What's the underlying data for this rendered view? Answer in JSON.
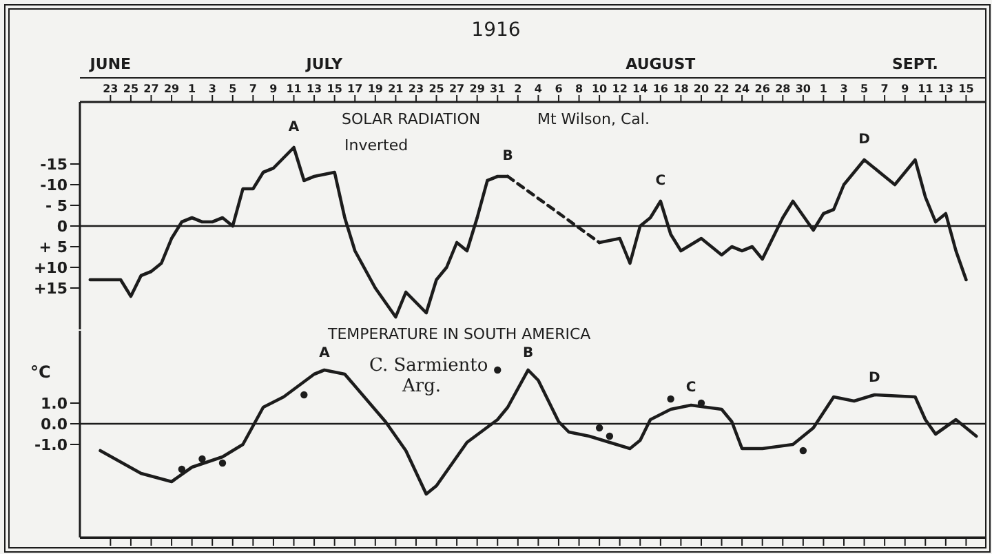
{
  "chart_data": [
    {
      "type": "line",
      "title": "1916",
      "xlim": [
        "1916-06-20",
        "1916-09-17"
      ],
      "ylim": [
        25,
        -30
      ],
      "xticks": [
        {
          "value": "1916-06-23",
          "label": "23"
        },
        {
          "value": "1916-06-25",
          "label": "25"
        },
        {
          "value": "1916-06-27",
          "label": "27"
        },
        {
          "value": "1916-06-29",
          "label": "29"
        },
        {
          "value": "1916-07-01",
          "label": "1"
        },
        {
          "value": "1916-07-03",
          "label": "3"
        },
        {
          "value": "1916-07-05",
          "label": "5"
        },
        {
          "value": "1916-07-07",
          "label": "7"
        },
        {
          "value": "1916-07-09",
          "label": "9"
        },
        {
          "value": "1916-07-11",
          "label": "11"
        },
        {
          "value": "1916-07-13",
          "label": "13"
        },
        {
          "value": "1916-07-15",
          "label": "15"
        },
        {
          "value": "1916-07-17",
          "label": "17"
        },
        {
          "value": "1916-07-19",
          "label": "19"
        },
        {
          "value": "1916-07-21",
          "label": "21"
        },
        {
          "value": "1916-07-23",
          "label": "23"
        },
        {
          "value": "1916-07-25",
          "label": "25"
        },
        {
          "value": "1916-07-27",
          "label": "27"
        },
        {
          "value": "1916-07-29",
          "label": "29"
        },
        {
          "value": "1916-07-31",
          "label": "31"
        },
        {
          "value": "1916-08-02",
          "label": "2"
        },
        {
          "value": "1916-08-04",
          "label": "4"
        },
        {
          "value": "1916-08-06",
          "label": "6"
        },
        {
          "value": "1916-08-08",
          "label": "8"
        },
        {
          "value": "1916-08-10",
          "label": "10"
        },
        {
          "value": "1916-08-12",
          "label": "12"
        },
        {
          "value": "1916-08-14",
          "label": "14"
        },
        {
          "value": "1916-08-16",
          "label": "16"
        },
        {
          "value": "1916-08-18",
          "label": "18"
        },
        {
          "value": "1916-08-20",
          "label": "20"
        },
        {
          "value": "1916-08-22",
          "label": "22"
        },
        {
          "value": "1916-08-24",
          "label": "24"
        },
        {
          "value": "1916-08-26",
          "label": "26"
        },
        {
          "value": "1916-08-28",
          "label": "28"
        },
        {
          "value": "1916-08-30",
          "label": "30"
        },
        {
          "value": "1916-09-01",
          "label": "1"
        },
        {
          "value": "1916-09-03",
          "label": "3"
        },
        {
          "value": "1916-09-05",
          "label": "5"
        },
        {
          "value": "1916-09-07",
          "label": "7"
        },
        {
          "value": "1916-09-09",
          "label": "9"
        },
        {
          "value": "1916-09-11",
          "label": "11"
        },
        {
          "value": "1916-09-13",
          "label": "13"
        },
        {
          "value": "1916-09-15",
          "label": "15"
        }
      ],
      "x2lim": [
        "1916-06-20",
        "1916-09-17"
      ],
      "x2ticks": [
        {
          "value": "1916-06-23",
          "label": "JUNE"
        },
        {
          "value": "1916-07-14",
          "label": "JULY"
        },
        {
          "value": "1916-08-16",
          "label": "AUGUST"
        },
        {
          "value": "1916-09-10",
          "label": "SEPT."
        }
      ],
      "yticks": [
        -15,
        -10,
        {
          "value": -5,
          "label": "- 5"
        },
        0,
        {
          "value": 5,
          "label": "+ 5"
        },
        {
          "value": 10,
          "label": "+10"
        },
        {
          "value": 15,
          "label": "+15"
        }
      ],
      "marker": "none",
      "series": [
        {
          "color": "#1c1c1c",
          "line_style": "solid",
          "x": [
            "1916-06-21",
            "1916-06-24",
            "1916-06-25",
            "1916-06-26",
            "1916-06-27",
            "1916-06-28",
            "1916-06-29",
            "1916-06-30",
            "1916-07-01",
            "1916-07-02",
            "1916-07-03",
            "1916-07-04",
            "1916-07-05",
            "1916-07-06",
            "1916-07-07",
            "1916-07-08",
            "1916-07-09",
            "1916-07-11",
            "1916-07-12",
            "1916-07-13",
            "1916-07-15",
            "1916-07-16",
            "1916-07-17",
            "1916-07-19",
            "1916-07-21",
            "1916-07-22",
            "1916-07-24",
            "1916-07-25",
            "1916-07-26",
            "1916-07-27",
            "1916-07-28",
            "1916-07-29",
            "1916-07-30",
            "1916-07-31",
            "1916-08-01"
          ],
          "values": [
            13,
            13,
            17,
            12,
            11,
            9,
            3,
            -1,
            -2,
            -1,
            -1,
            -2,
            0,
            -9,
            -9,
            -13,
            -14,
            -19,
            -11,
            -12,
            -13,
            -2,
            6,
            15,
            22,
            16,
            21,
            13,
            10,
            4,
            6,
            -2,
            -11,
            -12,
            -12
          ]
        },
        {
          "color": "#1c1c1c",
          "line_style": "dashed",
          "x": [
            "1916-08-01",
            "1916-08-10"
          ],
          "values": [
            -12,
            4
          ]
        },
        {
          "color": "#1c1c1c",
          "line_style": "solid",
          "x": [
            "1916-08-10",
            "1916-08-12",
            "1916-08-13",
            "1916-08-14",
            "1916-08-15",
            "1916-08-16",
            "1916-08-17",
            "1916-08-18",
            "1916-08-20",
            "1916-08-22",
            "1916-08-23",
            "1916-08-24",
            "1916-08-25",
            "1916-08-26",
            "1916-08-28",
            "1916-08-29",
            "1916-08-31",
            "1916-09-01",
            "1916-09-02",
            "1916-09-03",
            "1916-09-05",
            "1916-09-07",
            "1916-09-08",
            "1916-09-10",
            "1916-09-11",
            "1916-09-12",
            "1916-09-13",
            "1916-09-14",
            "1916-09-15"
          ],
          "values": [
            4,
            3,
            9,
            0,
            -2,
            -6,
            2,
            6,
            3,
            7,
            5,
            6,
            5,
            8,
            -2,
            -6,
            1,
            -3,
            -4,
            -10,
            -16,
            -12,
            -10,
            -16,
            -7,
            -1,
            -3,
            6,
            13
          ]
        }
      ],
      "ref_lines": [
        {
          "axis": "y",
          "value": 0,
          "color": "#1c1c1c"
        }
      ],
      "annotations": [
        "SOLAR RADIATION",
        "Mt Wilson, Cal.",
        "Inverted",
        {
          "text": "A",
          "x": "1916-07-11",
          "y": -19
        },
        {
          "text": "B",
          "x": "1916-08-01",
          "y": -12
        },
        {
          "text": "C",
          "x": "1916-08-16",
          "y": -6
        },
        {
          "text": "D",
          "x": "1916-09-05",
          "y": -16
        }
      ]
    },
    {
      "type": "line",
      "ylabel": "°C",
      "line_style": "solid",
      "xlim": [
        "1916-06-20",
        "1916-09-17"
      ],
      "ylim": [
        -5.5,
        4.5
      ],
      "xticks": [
        {
          "value": "1916-06-23",
          "label": null
        },
        {
          "value": "1916-06-25",
          "label": null
        },
        {
          "value": "1916-06-27",
          "label": null
        },
        {
          "value": "1916-06-29",
          "label": null
        },
        {
          "value": "1916-07-01",
          "label": null
        },
        {
          "value": "1916-07-03",
          "label": null
        },
        {
          "value": "1916-07-05",
          "label": null
        },
        {
          "value": "1916-07-07",
          "label": null
        },
        {
          "value": "1916-07-09",
          "label": null
        },
        {
          "value": "1916-07-11",
          "label": null
        },
        {
          "value": "1916-07-13",
          "label": null
        },
        {
          "value": "1916-07-15",
          "label": null
        },
        {
          "value": "1916-07-17",
          "label": null
        },
        {
          "value": "1916-07-19",
          "label": null
        },
        {
          "value": "1916-07-21",
          "label": null
        },
        {
          "value": "1916-07-23",
          "label": null
        },
        {
          "value": "1916-07-25",
          "label": null
        },
        {
          "value": "1916-07-27",
          "label": null
        },
        {
          "value": "1916-07-29",
          "label": null
        },
        {
          "value": "1916-07-31",
          "label": null
        },
        {
          "value": "1916-08-02",
          "label": null
        },
        {
          "value": "1916-08-04",
          "label": null
        },
        {
          "value": "1916-08-06",
          "label": null
        },
        {
          "value": "1916-08-08",
          "label": null
        },
        {
          "value": "1916-08-10",
          "label": null
        },
        {
          "value": "1916-08-12",
          "label": null
        },
        {
          "value": "1916-08-14",
          "label": null
        },
        {
          "value": "1916-08-16",
          "label": null
        },
        {
          "value": "1916-08-18",
          "label": null
        },
        {
          "value": "1916-08-20",
          "label": null
        },
        {
          "value": "1916-08-22",
          "label": null
        },
        {
          "value": "1916-08-24",
          "label": null
        },
        {
          "value": "1916-08-26",
          "label": null
        },
        {
          "value": "1916-08-28",
          "label": null
        },
        {
          "value": "1916-08-30",
          "label": null
        },
        {
          "value": "1916-09-01",
          "label": null
        },
        {
          "value": "1916-09-03",
          "label": null
        },
        {
          "value": "1916-09-05",
          "label": null
        },
        {
          "value": "1916-09-07",
          "label": null
        },
        {
          "value": "1916-09-09",
          "label": null
        },
        {
          "value": "1916-09-11",
          "label": null
        },
        {
          "value": "1916-09-13",
          "label": null
        },
        {
          "value": "1916-09-15",
          "label": null
        }
      ],
      "yticks": [
        {
          "value": 1,
          "label": "1.0"
        },
        {
          "value": 0,
          "label": "0.0"
        },
        {
          "value": -1,
          "label": "-1.0"
        }
      ],
      "tick_labels": "y",
      "marker": "none",
      "series": [
        {
          "color": "#1c1c1c",
          "x": [
            "1916-06-22",
            "1916-06-26",
            "1916-06-29",
            "1916-07-01",
            "1916-07-04",
            "1916-07-06",
            "1916-07-08",
            "1916-07-10",
            "1916-07-13",
            "1916-07-14",
            "1916-07-16",
            "1916-07-20",
            "1916-07-22",
            "1916-07-24",
            "1916-07-25",
            "1916-07-28",
            "1916-07-31",
            "1916-08-01",
            "1916-08-03",
            "1916-08-04",
            "1916-08-06",
            "1916-08-07",
            "1916-08-09",
            "1916-08-13",
            "1916-08-14",
            "1916-08-15",
            "1916-08-17",
            "1916-08-19",
            "1916-08-22",
            "1916-08-23",
            "1916-08-24",
            "1916-08-26",
            "1916-08-29",
            "1916-08-31",
            "1916-09-02",
            "1916-09-04",
            "1916-09-06",
            "1916-09-10",
            "1916-09-11",
            "1916-09-12",
            "1916-09-14",
            "1916-09-16"
          ],
          "values": [
            -1.3,
            -2.4,
            -2.8,
            -2.1,
            -1.6,
            -1.0,
            0.8,
            1.3,
            2.4,
            2.6,
            2.4,
            0.1,
            -1.3,
            -3.4,
            -3.0,
            -0.9,
            0.2,
            0.8,
            2.6,
            2.1,
            0.1,
            -0.4,
            -0.6,
            -1.2,
            -0.8,
            0.2,
            0.7,
            0.9,
            0.7,
            0.1,
            -1.2,
            -1.2,
            -1.0,
            -0.2,
            1.3,
            1.1,
            1.4,
            1.3,
            0.2,
            -0.5,
            0.2,
            -0.6
          ]
        },
        {
          "type": "scatter",
          "color": "#1c1c1c",
          "marker": "circle",
          "x": [
            "1916-06-30",
            "1916-07-02",
            "1916-07-04",
            "1916-07-12",
            "1916-07-31",
            "1916-08-10",
            "1916-08-11",
            "1916-08-17",
            "1916-08-20",
            "1916-08-30"
          ],
          "values": [
            -2.2,
            -1.7,
            -1.9,
            1.4,
            2.6,
            -0.2,
            -0.6,
            1.2,
            1.0,
            -1.3
          ]
        }
      ],
      "ref_lines": [
        {
          "axis": "y",
          "value": 0,
          "color": "#1c1c1c"
        }
      ],
      "annotations": [
        "TEMPERATURE IN SOUTH AMERICA",
        "C. Sarmiento",
        "Arg.",
        {
          "text": "A",
          "x": "1916-07-14",
          "y": 2.6
        },
        {
          "text": "B",
          "x": "1916-08-03",
          "y": 2.6
        },
        {
          "text": "C",
          "x": "1916-08-19",
          "y": 0.9
        },
        {
          "text": "D",
          "x": "1916-09-06",
          "y": 1.4
        }
      ]
    }
  ]
}
